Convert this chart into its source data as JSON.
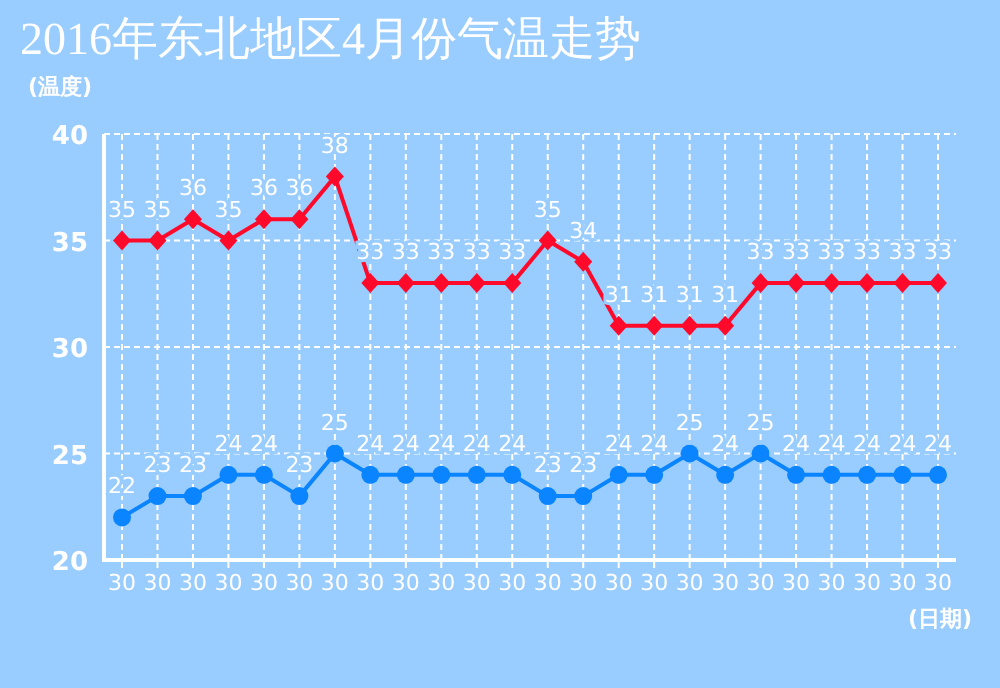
{
  "chart_data": {
    "type": "line",
    "title": "2016年东北地区4月份气温走势",
    "ylabel": "(温度)",
    "xlabel": "(日期)",
    "categories": [
      "30",
      "30",
      "30",
      "30",
      "30",
      "30",
      "30",
      "30",
      "30",
      "30",
      "30",
      "30",
      "30",
      "30",
      "30",
      "30",
      "30",
      "30",
      "30",
      "30",
      "30",
      "30",
      "30",
      "30"
    ],
    "series": [
      {
        "color": "#ff0a2a",
        "marker": "diamond",
        "values": [
          35,
          35,
          36,
          35,
          36,
          36,
          38,
          33,
          33,
          33,
          33,
          33,
          35,
          34,
          31,
          31,
          31,
          31,
          33,
          33,
          33,
          33,
          33,
          33
        ]
      },
      {
        "color": "#0a84ff",
        "marker": "circle",
        "values": [
          22,
          23,
          23,
          24,
          24,
          23,
          25,
          24,
          24,
          24,
          24,
          24,
          23,
          23,
          24,
          24,
          25,
          24,
          25,
          24,
          24,
          24,
          24,
          24
        ]
      }
    ],
    "ylim": [
      20,
      40
    ],
    "yticks": [
      20,
      25,
      30,
      35,
      40
    ],
    "grid": true,
    "data_labels": true,
    "line_style": "solid"
  }
}
